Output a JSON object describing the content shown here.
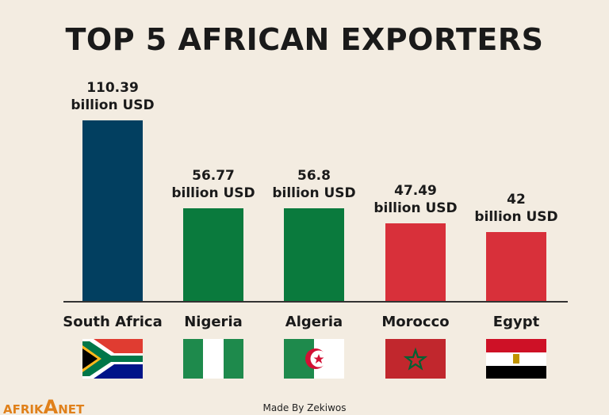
{
  "chart_data": {
    "type": "bar",
    "title": "TOP 5 AFRICAN EXPORTERS",
    "categories": [
      "South Africa",
      "Nigeria",
      "Algeria",
      "Morocco",
      "Egypt"
    ],
    "values": [
      110.39,
      56.77,
      56.8,
      47.49,
      42
    ],
    "value_labels": [
      "110.39\nbillion USD",
      "56.77\nbillion USD",
      "56.8\nbillion USD",
      "47.49\nbillion USD",
      "42\nbillion USD"
    ],
    "colors": [
      "#023f60",
      "#0a7a3d",
      "#0a7a3d",
      "#d8303a",
      "#d8303a"
    ]
  },
  "footer": {
    "credit": "Made By Zekiwos",
    "logo": [
      "AFRIK",
      "A",
      "NET"
    ]
  }
}
